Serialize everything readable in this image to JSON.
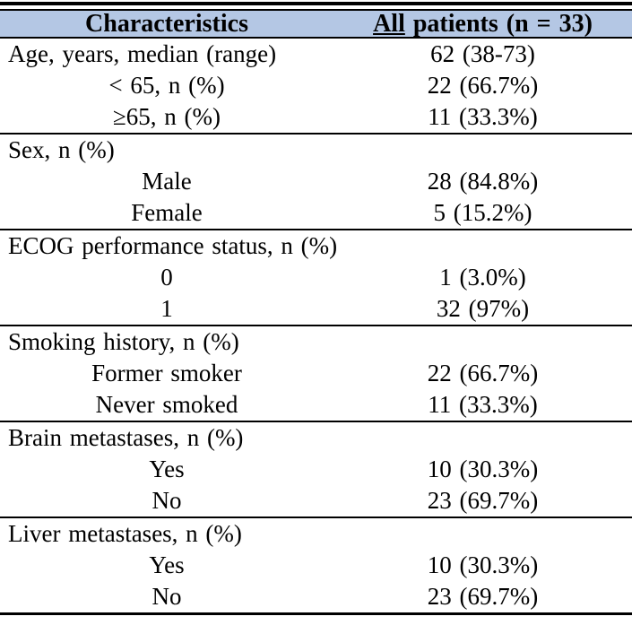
{
  "table": {
    "colors": {
      "header_bg": "#b4c7e4",
      "border": "#000000",
      "text": "#000000",
      "background": "#ffffff"
    },
    "header": {
      "col1": "Characteristics",
      "col2_full": "All patients (n = 33)",
      "col2_underlined_part": "All",
      "col2_rest": " patients (n = 33)"
    },
    "sections": [
      {
        "rows": [
          {
            "label": "Age, years, median (range)",
            "value": "62 (38-73)",
            "indent": false
          },
          {
            "label": "< 65, n (%)",
            "value": "22 (66.7%)",
            "indent": true
          },
          {
            "label": "≥65, n (%)",
            "value": "11 (33.3%)",
            "indent": true
          }
        ]
      },
      {
        "rows": [
          {
            "label": "Sex, n (%)",
            "value": "",
            "indent": false
          },
          {
            "label": "Male",
            "value": "28 (84.8%)",
            "indent": true
          },
          {
            "label": "Female",
            "value": "5 (15.2%)",
            "indent": true
          }
        ]
      },
      {
        "rows": [
          {
            "label": "ECOG performance status, n (%)",
            "value": "",
            "indent": false
          },
          {
            "label": "0",
            "value": "1 (3.0%)",
            "indent": true
          },
          {
            "label": "1",
            "value": "32 (97%)",
            "indent": true
          }
        ]
      },
      {
        "rows": [
          {
            "label": "Smoking history, n (%)",
            "value": "",
            "indent": false
          },
          {
            "label": "Former smoker",
            "value": "22 (66.7%)",
            "indent": true
          },
          {
            "label": "Never smoked",
            "value": "11 (33.3%)",
            "indent": true
          }
        ]
      },
      {
        "rows": [
          {
            "label": "Brain metastases, n (%)",
            "value": "",
            "indent": false
          },
          {
            "label": "Yes",
            "value": "10 (30.3%)",
            "indent": true
          },
          {
            "label": "No",
            "value": "23 (69.7%)",
            "indent": true
          }
        ]
      },
      {
        "rows": [
          {
            "label": "Liver metastases, n (%)",
            "value": "",
            "indent": false
          },
          {
            "label": "Yes",
            "value": "10 (30.3%)",
            "indent": true
          },
          {
            "label": "No",
            "value": "23 (69.7%)",
            "indent": true
          }
        ]
      }
    ]
  }
}
